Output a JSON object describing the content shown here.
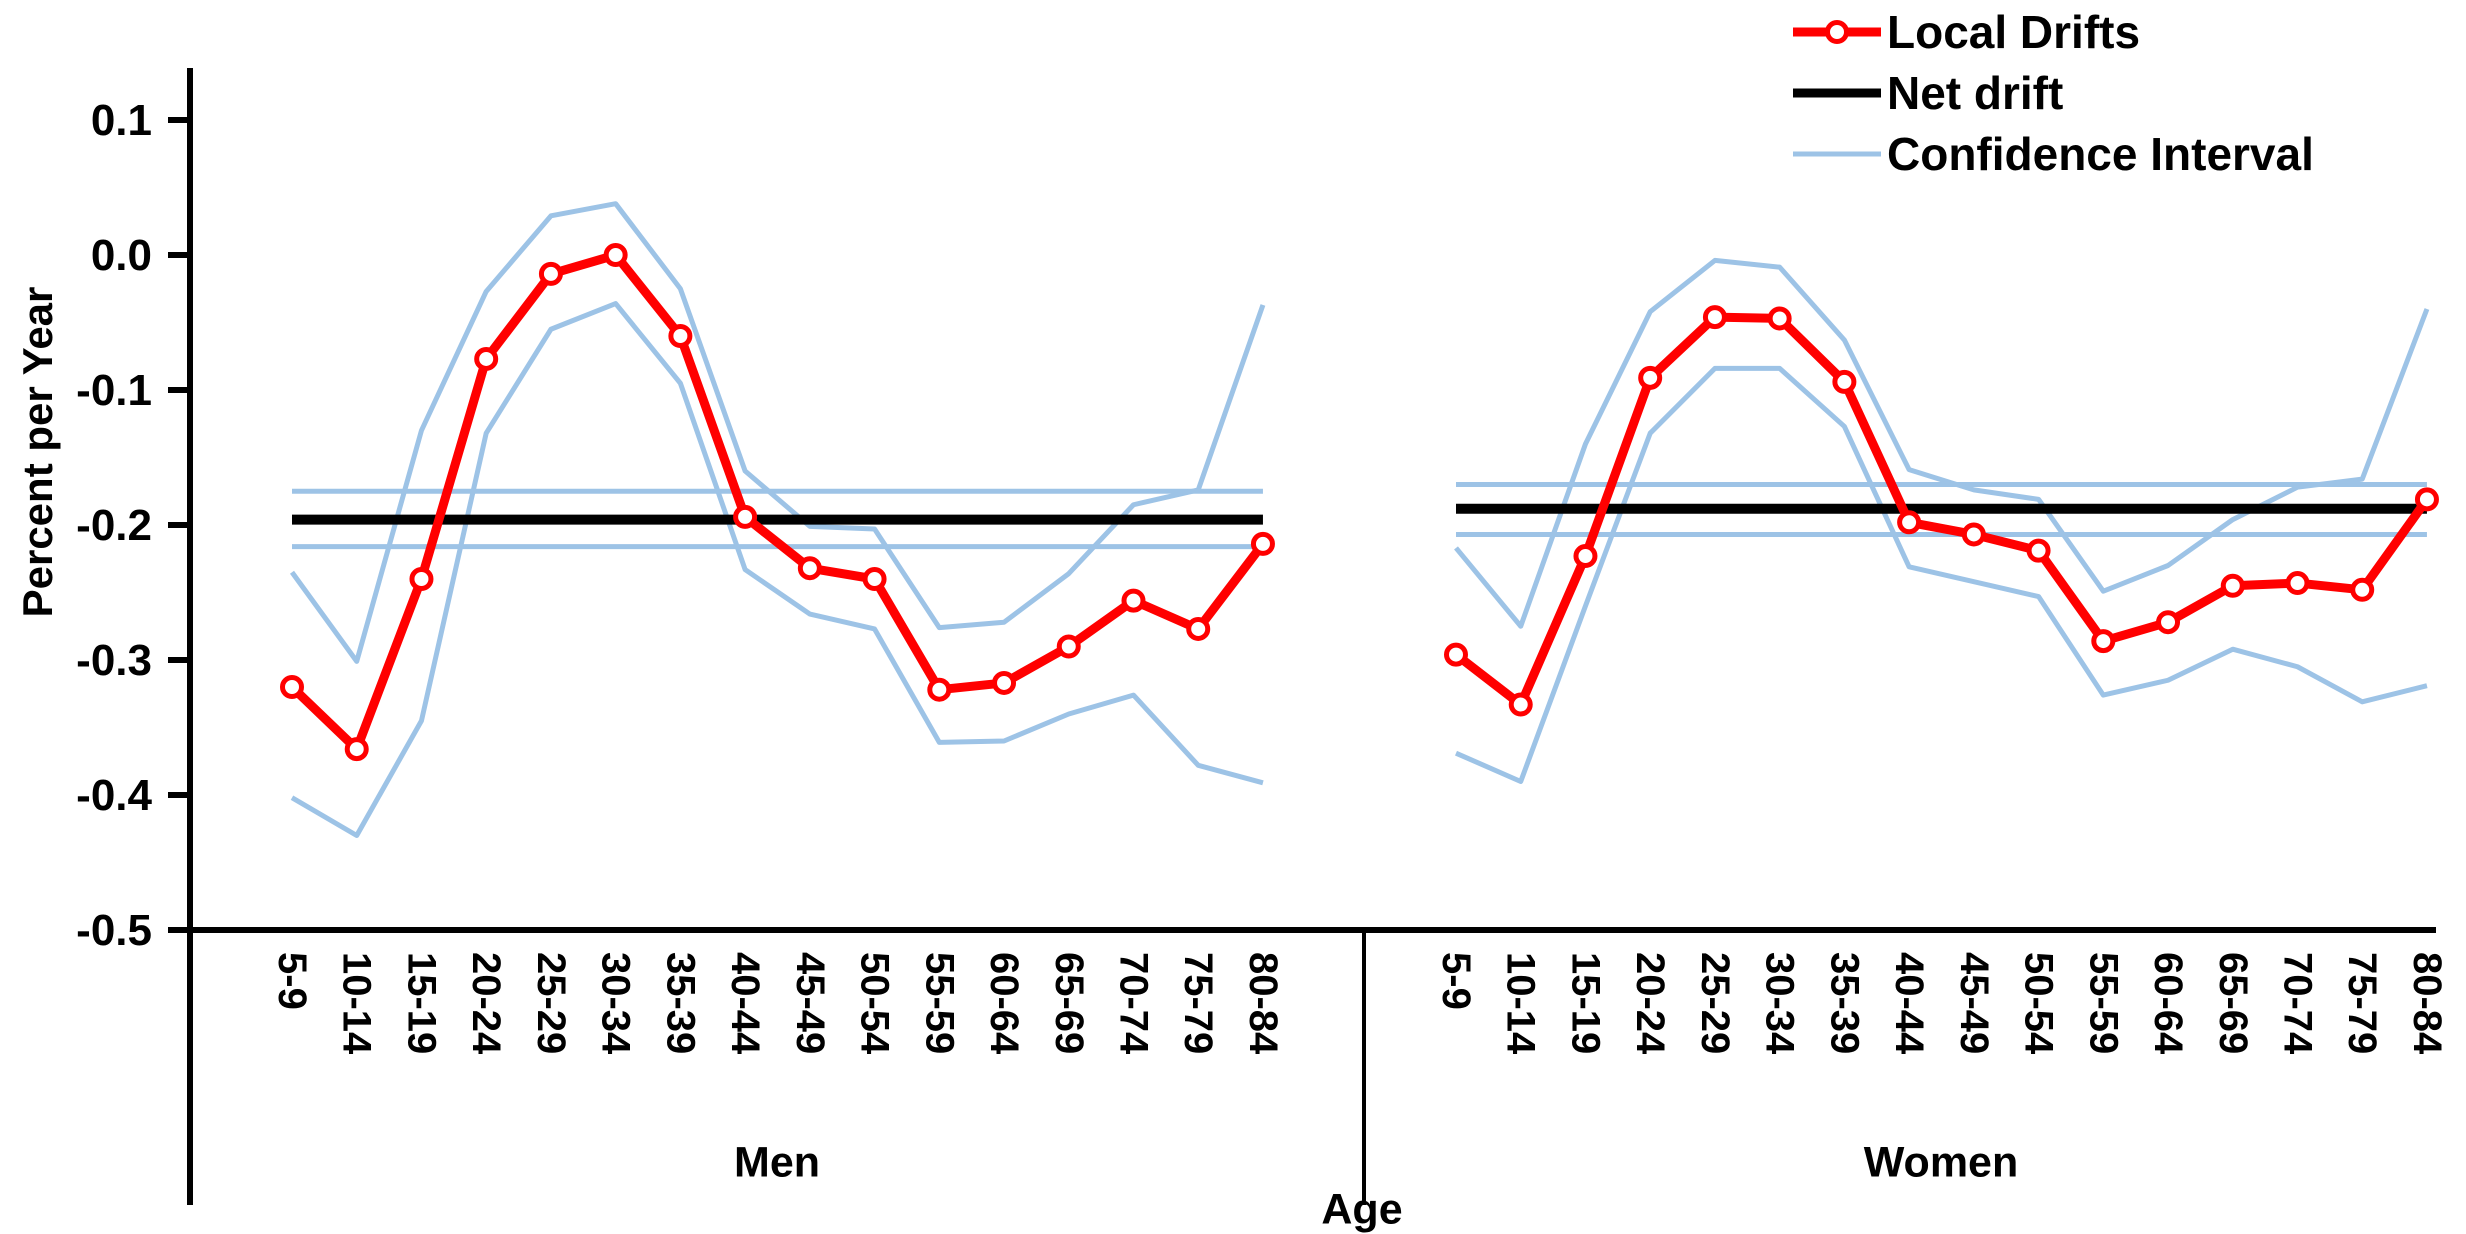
{
  "legend": {
    "items": [
      {
        "label": "Local Drifts",
        "type": "line-marker",
        "color": "#ff0000"
      },
      {
        "label": "Net drift",
        "type": "line",
        "color": "#000000"
      },
      {
        "label": "Confidence Interval",
        "type": "line",
        "color": "#9dc3e6"
      }
    ]
  },
  "chart_data": {
    "type": "line",
    "title": "",
    "xlabel": "Age",
    "ylabel": "Percent per Year",
    "ylim": [
      -0.5,
      0.1
    ],
    "yticks": [
      0.1,
      0.0,
      -0.1,
      -0.2,
      -0.3,
      -0.4,
      -0.5
    ],
    "grid": false,
    "legend_position": "top-right",
    "units": "percent per year",
    "categories": [
      "5-9",
      "10-14",
      "15-19",
      "20-24",
      "25-29",
      "30-34",
      "35-39",
      "40-44",
      "45-49",
      "50-54",
      "55-59",
      "60-64",
      "65-69",
      "70-74",
      "75-79",
      "80-84"
    ],
    "colors": {
      "local_drifts": "#ff0000",
      "net_drift": "#000000",
      "confidence_interval": "#9dc3e6"
    },
    "panels": [
      {
        "label": "Men",
        "net_drift": -0.196,
        "net_drift_ci": [
          -0.216,
          -0.175
        ],
        "series": [
          {
            "name": "Local Drifts",
            "values": [
              -0.32,
              -0.366,
              -0.24,
              -0.077,
              -0.014,
              0.0,
              -0.06,
              -0.194,
              -0.232,
              -0.24,
              -0.322,
              -0.317,
              -0.29,
              -0.256,
              -0.277,
              -0.214
            ]
          },
          {
            "name": "CI upper",
            "values": [
              -0.235,
              -0.301,
              -0.13,
              -0.027,
              0.029,
              0.038,
              -0.025,
              -0.16,
              -0.201,
              -0.203,
              -0.276,
              -0.272,
              -0.236,
              -0.185,
              -0.174,
              -0.037
            ]
          },
          {
            "name": "CI lower",
            "values": [
              -0.402,
              -0.43,
              -0.345,
              -0.132,
              -0.055,
              -0.036,
              -0.095,
              -0.233,
              -0.266,
              -0.277,
              -0.361,
              -0.36,
              -0.34,
              -0.326,
              -0.378,
              -0.391
            ]
          }
        ]
      },
      {
        "label": "Women",
        "net_drift": -0.188,
        "net_drift_ci": [
          -0.207,
          -0.17
        ],
        "series": [
          {
            "name": "Local Drifts",
            "values": [
              -0.296,
              -0.333,
              -0.223,
              -0.091,
              -0.046,
              -0.047,
              -0.094,
              -0.198,
              -0.207,
              -0.219,
              -0.286,
              -0.272,
              -0.245,
              -0.243,
              -0.248,
              -0.181
            ]
          },
          {
            "name": "CI upper",
            "values": [
              -0.217,
              -0.275,
              -0.14,
              -0.042,
              -0.004,
              -0.009,
              -0.063,
              -0.159,
              -0.174,
              -0.181,
              -0.249,
              -0.23,
              -0.196,
              -0.172,
              -0.166,
              -0.04
            ]
          },
          {
            "name": "CI lower",
            "values": [
              -0.369,
              -0.39,
              -0.26,
              -0.132,
              -0.084,
              -0.084,
              -0.127,
              -0.231,
              -0.242,
              -0.253,
              -0.326,
              -0.315,
              -0.292,
              -0.305,
              -0.331,
              -0.319
            ]
          }
        ]
      }
    ]
  }
}
